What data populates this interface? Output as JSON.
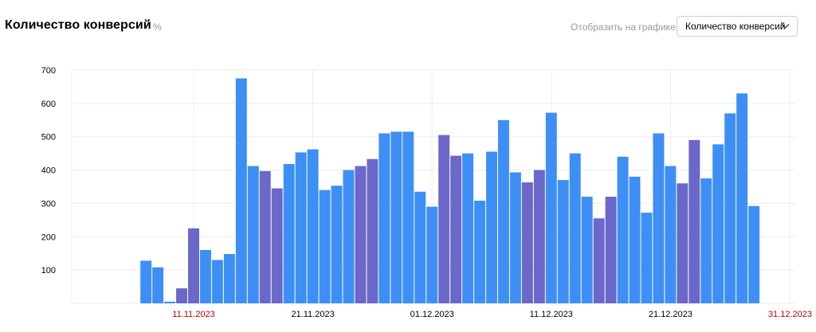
{
  "header": {
    "title": "Количество конверсий",
    "percent_icon": "percent-icon",
    "show_label": "Отобразить на графике:",
    "select_value": "Количество конверсий",
    "select_icon": "chevron-down-icon"
  },
  "colors": {
    "weekday": "#3d8ff5",
    "weekend": "#6b68c9",
    "grid": "#ececec",
    "holiday_label": "#c00000"
  },
  "chart_data": {
    "type": "bar",
    "title": "Количество конверсий",
    "xlabel": "",
    "ylabel": "",
    "ylim": [
      0,
      700
    ],
    "yticks": [
      100,
      200,
      300,
      400,
      500,
      600,
      700
    ],
    "x_range": [
      "2023-11-01",
      "2023-12-31"
    ],
    "xticks": [
      {
        "label": "11.11.2023",
        "date": "2023-11-11",
        "holiday": true
      },
      {
        "label": "21.11.2023",
        "date": "2023-11-21",
        "holiday": false
      },
      {
        "label": "01.12.2023",
        "date": "2023-12-01",
        "holiday": false
      },
      {
        "label": "11.12.2023",
        "date": "2023-12-11",
        "holiday": false
      },
      {
        "label": "21.12.2023",
        "date": "2023-12-21",
        "holiday": false
      },
      {
        "label": "31.12.2023",
        "date": "2023-12-31",
        "holiday": true
      }
    ],
    "categories": [
      "2023-11-07",
      "2023-11-08",
      "2023-11-09",
      "2023-11-10",
      "2023-11-11",
      "2023-11-12",
      "2023-11-13",
      "2023-11-14",
      "2023-11-15",
      "2023-11-16",
      "2023-11-17",
      "2023-11-18",
      "2023-11-19",
      "2023-11-20",
      "2023-11-21",
      "2023-11-22",
      "2023-11-23",
      "2023-11-24",
      "2023-11-25",
      "2023-11-26",
      "2023-11-27",
      "2023-11-28",
      "2023-11-29",
      "2023-11-30",
      "2023-12-01",
      "2023-12-02",
      "2023-12-03",
      "2023-12-04",
      "2023-12-05",
      "2023-12-06",
      "2023-12-07",
      "2023-12-08",
      "2023-12-09",
      "2023-12-10",
      "2023-12-11",
      "2023-12-12",
      "2023-12-13",
      "2023-12-14",
      "2023-12-15",
      "2023-12-16",
      "2023-12-17",
      "2023-12-18",
      "2023-12-19",
      "2023-12-20",
      "2023-12-21",
      "2023-12-22",
      "2023-12-23",
      "2023-12-24",
      "2023-12-25",
      "2023-12-26",
      "2023-12-27",
      "2023-12-28",
      "2023-12-29"
    ],
    "values": [
      128,
      108,
      5,
      45,
      225,
      160,
      130,
      148,
      675,
      412,
      397,
      345,
      418,
      453,
      462,
      340,
      353,
      400,
      412,
      433,
      510,
      515,
      515,
      335,
      290,
      505,
      443,
      450,
      308,
      455,
      550,
      393,
      363,
      400,
      572,
      370,
      450,
      320,
      255,
      320,
      440,
      380,
      272,
      510,
      412,
      360,
      490,
      375,
      477,
      570,
      630,
      292,
      0
    ],
    "weekend": [
      false,
      false,
      false,
      true,
      true,
      false,
      false,
      false,
      false,
      false,
      true,
      true,
      false,
      false,
      false,
      false,
      false,
      false,
      true,
      true,
      false,
      false,
      false,
      false,
      false,
      true,
      true,
      false,
      false,
      false,
      false,
      false,
      true,
      true,
      false,
      false,
      false,
      false,
      true,
      true,
      false,
      false,
      false,
      false,
      false,
      true,
      true,
      false,
      false,
      false,
      false,
      false,
      false
    ]
  }
}
